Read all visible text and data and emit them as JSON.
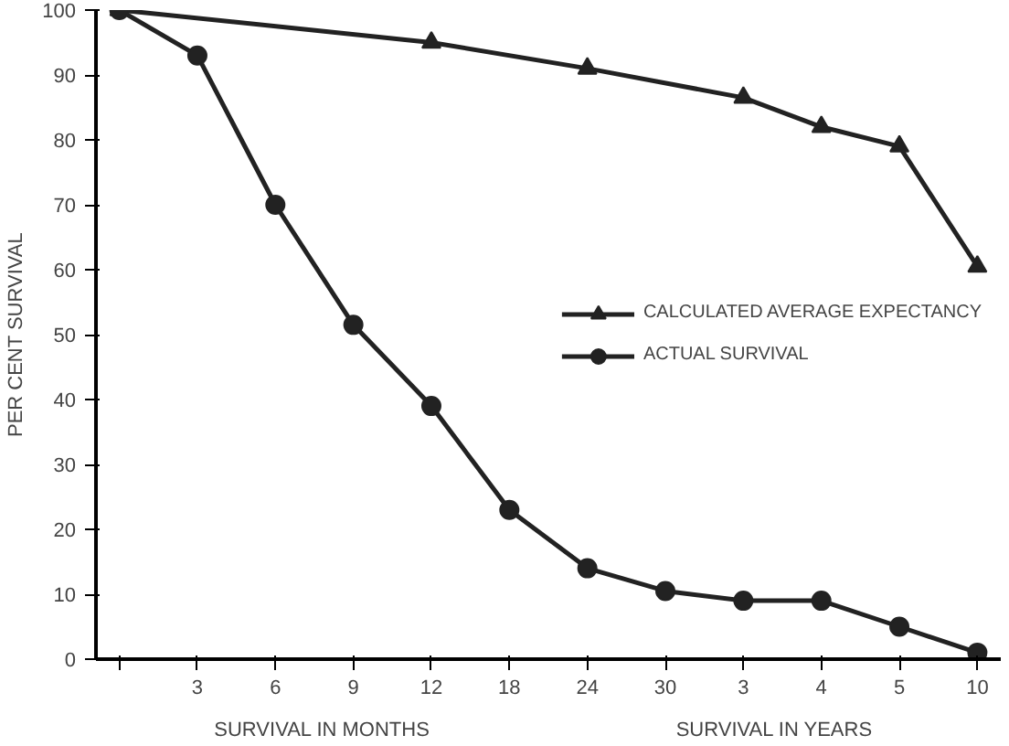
{
  "chart_data": {
    "type": "line",
    "ylabel": "PER CENT SURVIVAL",
    "categories": [
      null,
      "3",
      "6",
      "9",
      "12",
      "18",
      "24",
      "30",
      "3",
      "4",
      "5",
      "10"
    ],
    "series": [
      {
        "name": "CALCULATED AVERAGE EXPECTANCY",
        "color": "#222222",
        "marker": "triangle",
        "values": [
          100,
          null,
          null,
          null,
          95,
          null,
          91,
          null,
          86.5,
          82,
          79,
          60.5
        ]
      },
      {
        "name": "ACTUAL SURVIVAL",
        "color": "#222222",
        "marker": "circle",
        "values": [
          100,
          93,
          70,
          51.5,
          39,
          23,
          14,
          10.5,
          9,
          9,
          5,
          1
        ]
      }
    ],
    "ylim": [
      0,
      100
    ],
    "yticks": [
      0,
      10,
      20,
      30,
      40,
      50,
      60,
      70,
      80,
      90,
      100
    ],
    "annotations": [
      "SURVIVAL IN MONTHS",
      "SURVIVAL IN YEARS"
    ],
    "grid": false,
    "legend": "right",
    "line_style": "solid"
  }
}
